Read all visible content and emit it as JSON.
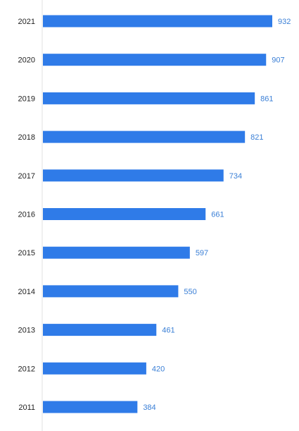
{
  "chart_data": {
    "type": "bar",
    "orientation": "horizontal",
    "categories": [
      "2021",
      "2020",
      "2019",
      "2018",
      "2017",
      "2016",
      "2015",
      "2014",
      "2013",
      "2012",
      "2011"
    ],
    "values": [
      932,
      907,
      861,
      821,
      734,
      661,
      597,
      550,
      461,
      420,
      384
    ],
    "value_labels": [
      "932",
      "907",
      "861",
      "821",
      "734",
      "661",
      "597",
      "550",
      "461",
      "420",
      "384"
    ],
    "title": "",
    "xlabel": "",
    "ylabel": "",
    "xlim": [
      0,
      932
    ],
    "grid": false,
    "legend": "none",
    "colors": {
      "bar": "#2f7be8",
      "value_label": "#3a7fd6",
      "category_label": "#222222",
      "axis_line": "#e0e0e0"
    }
  }
}
